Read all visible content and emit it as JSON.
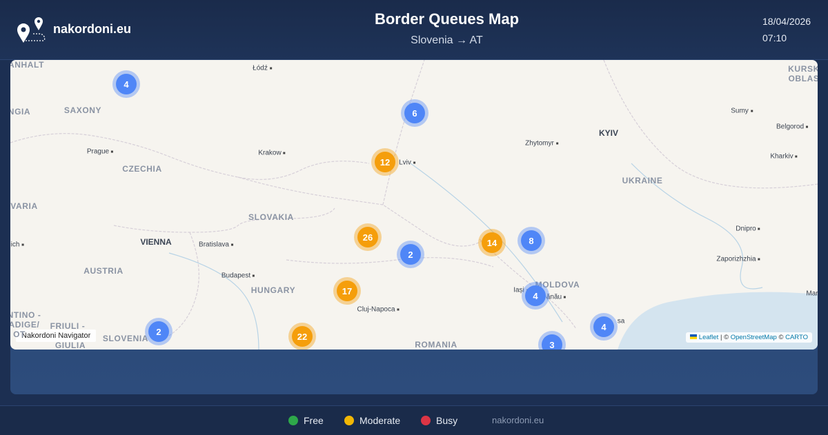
{
  "header": {
    "brand": "nakordoni.eu",
    "title": "Border Queues Map",
    "subtitle": "Slovenia → AT",
    "date": "18/04/2026",
    "time": "07:10"
  },
  "map": {
    "labels": [
      "ANHALT",
      "Łódź",
      "KURSK",
      "OBLAS",
      "SAXONY",
      "NGIA",
      "Sumy",
      "Belgorod",
      "KYIV",
      "Zhytomyr",
      "Prague",
      "Krakow",
      "Lviv",
      "CZECHIA",
      "Kharkiv",
      "UKRAINE",
      "VARIA",
      "SLOVAKIA",
      "Dnipro",
      "ich",
      "VIENNA",
      "Bratislava",
      "Zaporizhzhia",
      "AUSTRIA",
      "Budapest",
      "MOLDOVA",
      "HUNGARY",
      "Iași",
      "ănău",
      "Mar",
      "Cluj-Napoca",
      "NTINO -",
      "ADIGE/",
      "OT",
      "FRIULI -",
      "GIULIA",
      "SLOVENIA",
      "ROMANIA",
      "sa"
    ],
    "clusters": [
      {
        "count": 4,
        "color": "#4f86f7"
      },
      {
        "count": 6,
        "color": "#4f86f7"
      },
      {
        "count": 12,
        "color": "#f59e0b"
      },
      {
        "count": 26,
        "color": "#f59e0b"
      },
      {
        "count": 2,
        "color": "#4f86f7"
      },
      {
        "count": 14,
        "color": "#f59e0b"
      },
      {
        "count": 8,
        "color": "#4f86f7"
      },
      {
        "count": 17,
        "color": "#f59e0b"
      },
      {
        "count": 4,
        "color": "#4f86f7"
      },
      {
        "count": 2,
        "color": "#4f86f7"
      },
      {
        "count": 22,
        "color": "#f59e0b"
      },
      {
        "count": 4,
        "color": "#4f86f7"
      },
      {
        "count": 3,
        "color": "#4f86f7"
      }
    ],
    "navigator": "Nakordoni Navigator",
    "attribution": [
      "Leaflet",
      "| ©",
      "OpenStreetMap",
      "©",
      "CARTO"
    ]
  },
  "legend": [
    {
      "label": "Free",
      "color": "#2ea84a"
    },
    {
      "label": "Moderate",
      "color": "#f2b705"
    },
    {
      "label": "Busy",
      "color": "#dc3545"
    }
  ],
  "footer": {
    "site": "nakordoni.eu"
  }
}
